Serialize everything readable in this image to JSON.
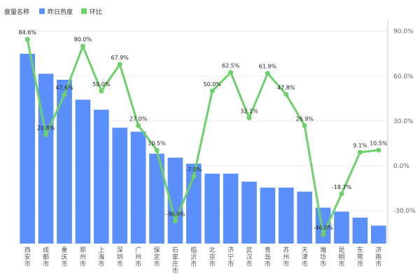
{
  "legend": {
    "title": "度量名称",
    "bar_label": "昨日热度",
    "line_label": "环比"
  },
  "colors": {
    "bar": "#5B8FF9",
    "line": "#6DD06B"
  },
  "chart_data": {
    "type": "bar+line",
    "categories": [
      "西安市",
      "成都市",
      "重庆市",
      "郑州市",
      "上海市",
      "深圳市",
      "广州市",
      "保定市",
      "石家庄市",
      "临沂市",
      "北京市",
      "济宁市",
      "武汉市",
      "青岛市",
      "苏州市",
      "天津市",
      "潍坊市",
      "昆明市",
      "东莞市",
      "济南市"
    ],
    "series": [
      {
        "name": "昨日热度",
        "type": "bar",
        "axis": "left",
        "values": [
          95,
          85,
          82,
          72,
          67,
          58,
          56,
          45,
          43,
          40,
          35,
          35,
          31,
          28,
          28,
          26,
          18,
          16,
          13,
          9
        ]
      },
      {
        "name": "环比",
        "type": "line",
        "axis": "right",
        "values": [
          84.6,
          20.8,
          47.6,
          80.0,
          50.0,
          67.9,
          27.0,
          10.5,
          -36.9,
          -7.0,
          50.0,
          62.5,
          32.1,
          61.9,
          47.8,
          26.9,
          -46.0,
          -18.7,
          9.1,
          10.5
        ],
        "labels": [
          "84.6%",
          "20.8%",
          "47.6%",
          "80.0%",
          "50.0%",
          "67.9%",
          "27.0%",
          "10.5%",
          "-36.9%",
          "-7.0%",
          "50.0%",
          "62.5%",
          "32.1%",
          "61.9%",
          "47.8%",
          "26.9%",
          "-46.0%",
          "-18.7%",
          "9.1%",
          "10.5%"
        ]
      }
    ],
    "y_left_range": [
      0,
      110
    ],
    "y_right_range": [
      -52,
      95
    ],
    "y_right_ticks": [
      90,
      60,
      30,
      0,
      -30
    ],
    "y_right_tick_labels": [
      "90.0%",
      "60.0%",
      "30.0%",
      "0.0%",
      "-30.0%"
    ],
    "legend_position": "top-left",
    "grid": true
  }
}
